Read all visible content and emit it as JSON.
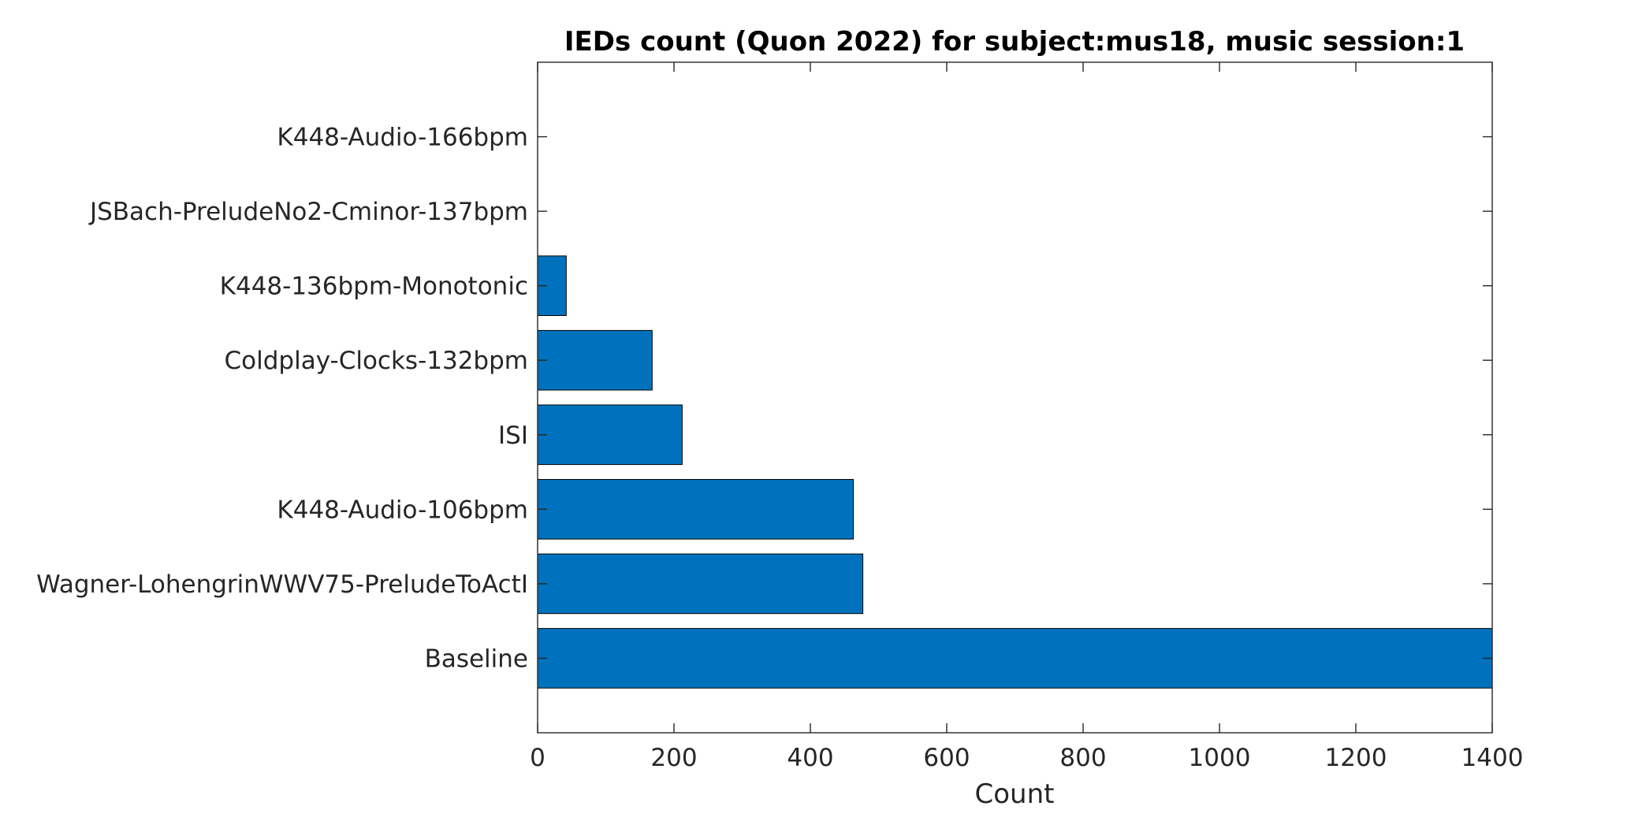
{
  "chart_data": {
    "type": "bar",
    "orientation": "horizontal",
    "title": "IEDs count (Quon 2022) for subject:mus18, music session:1",
    "xlabel": "Count",
    "ylabel": "",
    "xlim": [
      0,
      1400
    ],
    "xticks": [
      0,
      200,
      400,
      600,
      800,
      1000,
      1200,
      1400
    ],
    "xtick_labels": [
      "0",
      "200",
      "400",
      "600",
      "800",
      "1000",
      "1200",
      "1400"
    ],
    "categories": [
      "K448-Audio-166bpm",
      "JSBach-PreludeNo2-Cminor-137bpm",
      "K448-136bpm-Monotonic",
      "Coldplay-Clocks-132bpm",
      "ISI",
      "K448-Audio-106bpm",
      "Wagner-LohengrinWWV75-PreludeToActI",
      "Baseline"
    ],
    "values": [
      0,
      0,
      42,
      168,
      212,
      463,
      477,
      1400
    ],
    "bar_color": "#0072BD",
    "grid": false,
    "legend": "none"
  }
}
